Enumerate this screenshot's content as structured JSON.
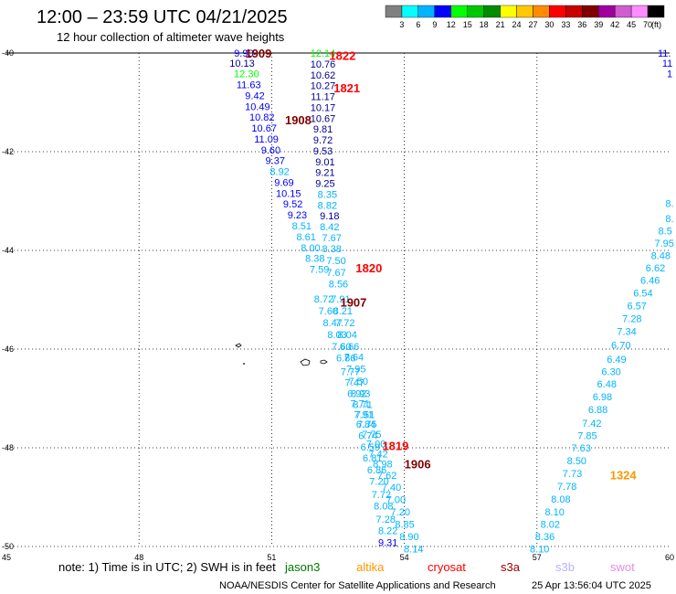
{
  "title": "12:00 – 23:59 UTC 04/21/2025",
  "subtitle": "12 hour collection of altimeter wave heights",
  "colorbar": {
    "unit": "(ft)",
    "colors": [
      "#808080",
      "#00ffff",
      "#00b4ff",
      "#0000ff",
      "#00ff00",
      "#00c800",
      "#008c00",
      "#ffff00",
      "#ffc800",
      "#ff8c00",
      "#ff0000",
      "#c80000",
      "#800000",
      "#a000a0",
      "#d05cd0",
      "#ff8cff",
      "#000000"
    ],
    "ticks": [
      "3",
      "6",
      "9",
      "12",
      "15",
      "18",
      "21",
      "24",
      "27",
      "30",
      "33",
      "36",
      "39",
      "42",
      "45",
      "70"
    ]
  },
  "note": {
    "text": "note: 1) Time is in UTC; 2) SWH is in feet",
    "satellites": [
      {
        "name": "jason3",
        "color": "#007800"
      },
      {
        "name": "altika",
        "color": "#ff9600"
      },
      {
        "name": "cryosat",
        "color": "#ff0000"
      },
      {
        "name": "s3a",
        "color": "#a00000"
      },
      {
        "name": "s3b",
        "color": "#b4b4ff"
      },
      {
        "name": "swot",
        "color": "#e68ce6"
      }
    ]
  },
  "credit": "NOAA/NESDIS Center for Satellite Applications and Research",
  "timestamp": "25 Apr 13:56:04 UTC 2025",
  "chart_data": {
    "type": "scatter",
    "xlim": [
      45,
      60
    ],
    "ylim": [
      -50,
      -40
    ],
    "x_ticks": [
      {
        "v": 45,
        "l": "45"
      },
      {
        "v": 48,
        "l": "48"
      },
      {
        "v": 51,
        "l": "51"
      },
      {
        "v": 54,
        "l": "54"
      },
      {
        "v": 57,
        "l": "57"
      },
      {
        "v": 60,
        "l": "60"
      }
    ],
    "y_ticks": [
      {
        "v": -40,
        "l": "-40"
      },
      {
        "v": -42,
        "l": "-42"
      },
      {
        "v": -44,
        "l": "-44"
      },
      {
        "v": -46,
        "l": "-46"
      },
      {
        "v": -48,
        "l": "-48"
      },
      {
        "v": -50,
        "l": "-50"
      }
    ],
    "grid": true,
    "track_labels": [
      {
        "text": "1909",
        "x": 50.7,
        "y": -40.0,
        "color": "#800000"
      },
      {
        "text": "1822",
        "x": 52.6,
        "y": -40.05,
        "color": "#ff0000"
      },
      {
        "text": "1821",
        "x": 52.7,
        "y": -40.7,
        "color": "#ff0000"
      },
      {
        "text": "1908",
        "x": 51.6,
        "y": -41.35,
        "color": "#800000"
      },
      {
        "text": "1820",
        "x": 53.2,
        "y": -44.35,
        "color": "#ff0000"
      },
      {
        "text": "1907",
        "x": 52.85,
        "y": -45.05,
        "color": "#800000"
      },
      {
        "text": "1819",
        "x": 53.8,
        "y": -47.95,
        "color": "#ff0000"
      },
      {
        "text": "1906",
        "x": 54.3,
        "y": -48.32,
        "color": "#800000"
      },
      {
        "text": "1324",
        "x": 58.95,
        "y": -48.55,
        "color": "#ff9600"
      }
    ],
    "points": [
      {
        "x": 50.37,
        "y": -40.0,
        "v": "9.90",
        "c": "#0000ff"
      },
      {
        "x": 50.33,
        "y": -40.2,
        "v": "10.13",
        "c": "#00008c"
      },
      {
        "x": 50.43,
        "y": -40.42,
        "v": "12.30",
        "c": "#00ff00"
      },
      {
        "x": 50.48,
        "y": -40.64,
        "v": "11.63",
        "c": "#0000ff"
      },
      {
        "x": 50.62,
        "y": -40.86,
        "v": "9.42",
        "c": "#0000ff"
      },
      {
        "x": 50.68,
        "y": -41.08,
        "v": "10.49",
        "c": "#0000ff"
      },
      {
        "x": 50.78,
        "y": -41.3,
        "v": "10.82",
        "c": "#0000ff"
      },
      {
        "x": 50.83,
        "y": -41.52,
        "v": "10.67",
        "c": "#0000ff"
      },
      {
        "x": 50.88,
        "y": -41.74,
        "v": "11.09",
        "c": "#0000ff"
      },
      {
        "x": 50.98,
        "y": -41.96,
        "v": "9.60",
        "c": "#0000ff"
      },
      {
        "x": 51.08,
        "y": -42.18,
        "v": "9.37",
        "c": "#0000ff"
      },
      {
        "x": 51.18,
        "y": -42.4,
        "v": "8.92",
        "c": "#00b4ff"
      },
      {
        "x": 51.28,
        "y": -42.62,
        "v": "9.69",
        "c": "#0000ff"
      },
      {
        "x": 51.38,
        "y": -42.84,
        "v": "10.15",
        "c": "#0000ff"
      },
      {
        "x": 51.48,
        "y": -43.06,
        "v": "9.52",
        "c": "#0000ff"
      },
      {
        "x": 51.58,
        "y": -43.28,
        "v": "9.23",
        "c": "#0000ff"
      },
      {
        "x": 51.68,
        "y": -43.5,
        "v": "8.51",
        "c": "#00b4ff"
      },
      {
        "x": 51.78,
        "y": -43.72,
        "v": "8.61",
        "c": "#00b4ff"
      },
      {
        "x": 51.88,
        "y": -43.94,
        "v": "8.00",
        "c": "#00b4ff"
      },
      {
        "x": 51.98,
        "y": -44.16,
        "v": "8.38",
        "c": "#00b4ff"
      },
      {
        "x": 52.08,
        "y": -44.38,
        "v": "7.59",
        "c": "#00b4ff"
      },
      {
        "x": 52.18,
        "y": -44.98,
        "v": "8.72",
        "c": "#00b4ff"
      },
      {
        "x": 52.28,
        "y": -45.22,
        "v": "7.60",
        "c": "#00b4ff"
      },
      {
        "x": 52.38,
        "y": -45.46,
        "v": "8.47",
        "c": "#00b4ff"
      },
      {
        "x": 52.48,
        "y": -45.7,
        "v": "8.03",
        "c": "#00b4ff"
      },
      {
        "x": 52.58,
        "y": -45.94,
        "v": "7.60",
        "c": "#00b4ff"
      },
      {
        "x": 52.68,
        "y": -46.18,
        "v": "6.86",
        "c": "#00b4ff"
      },
      {
        "x": 52.78,
        "y": -46.45,
        "v": "7.77",
        "c": "#00b4ff"
      },
      {
        "x": 52.88,
        "y": -46.68,
        "v": "7.47",
        "c": "#00b4ff"
      },
      {
        "x": 52.93,
        "y": -46.9,
        "v": "6.92",
        "c": "#00b4ff"
      },
      {
        "x": 53.0,
        "y": -47.1,
        "v": "7.71",
        "c": "#00b4ff"
      },
      {
        "x": 53.08,
        "y": -47.32,
        "v": "7.91",
        "c": "#00b4ff"
      },
      {
        "x": 53.13,
        "y": -47.52,
        "v": "6.84",
        "c": "#00b4ff"
      },
      {
        "x": 53.18,
        "y": -47.75,
        "v": "6.74",
        "c": "#00b4ff"
      },
      {
        "x": 53.23,
        "y": -47.98,
        "v": "6.59",
        "c": "#00b4ff"
      },
      {
        "x": 53.28,
        "y": -48.2,
        "v": "6.81",
        "c": "#00b4ff"
      },
      {
        "x": 53.38,
        "y": -48.44,
        "v": "6.86",
        "c": "#00b4ff"
      },
      {
        "x": 53.43,
        "y": -48.68,
        "v": "7.20",
        "c": "#00b4ff"
      },
      {
        "x": 53.48,
        "y": -48.94,
        "v": "7.72",
        "c": "#00b4ff"
      },
      {
        "x": 53.53,
        "y": -49.18,
        "v": "8.08",
        "c": "#00b4ff"
      },
      {
        "x": 53.58,
        "y": -49.44,
        "v": "7.28",
        "c": "#00b4ff"
      },
      {
        "x": 53.63,
        "y": -49.68,
        "v": "8.22",
        "c": "#00b4ff"
      },
      {
        "x": 53.63,
        "y": -49.92,
        "v": "9.31",
        "c": "#0000ff"
      },
      {
        "x": 52.16,
        "y": -40.0,
        "v": "12.14",
        "c": "#00ff00"
      },
      {
        "x": 52.16,
        "y": -40.22,
        "v": "10.76",
        "c": "#00008c"
      },
      {
        "x": 52.16,
        "y": -40.44,
        "v": "10.62",
        "c": "#00008c"
      },
      {
        "x": 52.16,
        "y": -40.66,
        "v": "10.27",
        "c": "#00008c"
      },
      {
        "x": 52.16,
        "y": -40.88,
        "v": "11.17",
        "c": "#00008c"
      },
      {
        "x": 52.16,
        "y": -41.1,
        "v": "10.17",
        "c": "#00008c"
      },
      {
        "x": 52.16,
        "y": -41.32,
        "v": "10.67",
        "c": "#00008c"
      },
      {
        "x": 52.16,
        "y": -41.54,
        "v": "9.81",
        "c": "#00008c"
      },
      {
        "x": 52.16,
        "y": -41.76,
        "v": "9.72",
        "c": "#00008c"
      },
      {
        "x": 52.16,
        "y": -41.98,
        "v": "9.53",
        "c": "#00008c"
      },
      {
        "x": 52.21,
        "y": -42.2,
        "v": "9.01",
        "c": "#00008c"
      },
      {
        "x": 52.21,
        "y": -42.42,
        "v": "9.21",
        "c": "#00008c"
      },
      {
        "x": 52.21,
        "y": -42.64,
        "v": "9.25",
        "c": "#00008c"
      },
      {
        "x": 52.26,
        "y": -42.86,
        "v": "8.35",
        "c": "#00b4ff"
      },
      {
        "x": 52.26,
        "y": -43.08,
        "v": "8.82",
        "c": "#00b4ff"
      },
      {
        "x": 52.31,
        "y": -43.3,
        "v": "9.18",
        "c": "#00008c"
      },
      {
        "x": 52.31,
        "y": -43.52,
        "v": "8.42",
        "c": "#00b4ff"
      },
      {
        "x": 52.36,
        "y": -43.74,
        "v": "7.67",
        "c": "#00b4ff"
      },
      {
        "x": 52.36,
        "y": -43.96,
        "v": "8.38",
        "c": "#00b4ff"
      },
      {
        "x": 52.46,
        "y": -44.2,
        "v": "7.50",
        "c": "#00b4ff"
      },
      {
        "x": 52.46,
        "y": -44.44,
        "v": "7.67",
        "c": "#00b4ff"
      },
      {
        "x": 52.51,
        "y": -44.68,
        "v": "8.56",
        "c": "#00b4ff"
      },
      {
        "x": 52.56,
        "y": -44.98,
        "v": "7.91",
        "c": "#00b4ff"
      },
      {
        "x": 52.61,
        "y": -45.22,
        "v": "8.21",
        "c": "#00b4ff"
      },
      {
        "x": 52.66,
        "y": -45.46,
        "v": "7.72",
        "c": "#00b4ff"
      },
      {
        "x": 52.71,
        "y": -45.7,
        "v": "8.04",
        "c": "#00b4ff"
      },
      {
        "x": 52.76,
        "y": -45.94,
        "v": "6.66",
        "c": "#00b4ff"
      },
      {
        "x": 52.86,
        "y": -46.16,
        "v": "7.64",
        "c": "#00b4ff"
      },
      {
        "x": 52.91,
        "y": -46.4,
        "v": "7.95",
        "c": "#00b4ff"
      },
      {
        "x": 52.96,
        "y": -46.65,
        "v": "7.50",
        "c": "#00b4ff"
      },
      {
        "x": 53.01,
        "y": -46.9,
        "v": "8.93",
        "c": "#00b4ff"
      },
      {
        "x": 53.06,
        "y": -47.12,
        "v": "8.71",
        "c": "#00b4ff"
      },
      {
        "x": 53.11,
        "y": -47.32,
        "v": "7.51",
        "c": "#00b4ff"
      },
      {
        "x": 53.16,
        "y": -47.52,
        "v": "7.75",
        "c": "#00b4ff"
      },
      {
        "x": 53.26,
        "y": -47.72,
        "v": "7.75",
        "c": "#00b4ff"
      },
      {
        "x": 53.36,
        "y": -47.92,
        "v": "7.00",
        "c": "#00b4ff"
      },
      {
        "x": 53.41,
        "y": -48.12,
        "v": "7.42",
        "c": "#00b4ff"
      },
      {
        "x": 53.51,
        "y": -48.32,
        "v": "8.98",
        "c": "#00b4ff"
      },
      {
        "x": 53.61,
        "y": -48.56,
        "v": "7.62",
        "c": "#00b4ff"
      },
      {
        "x": 53.71,
        "y": -48.8,
        "v": "7.40",
        "c": "#00b4ff"
      },
      {
        "x": 53.81,
        "y": -49.05,
        "v": "7.00",
        "c": "#00b4ff"
      },
      {
        "x": 53.91,
        "y": -49.3,
        "v": "7.20",
        "c": "#00b4ff"
      },
      {
        "x": 54.01,
        "y": -49.55,
        "v": "8.85",
        "c": "#00b4ff"
      },
      {
        "x": 54.11,
        "y": -49.8,
        "v": "8.90",
        "c": "#00b4ff"
      },
      {
        "x": 54.21,
        "y": -50.05,
        "v": "8.14",
        "c": "#00b4ff"
      },
      {
        "x": 59.88,
        "y": -40.0,
        "v": "11.",
        "c": "#0000ff"
      },
      {
        "x": 59.95,
        "y": -40.2,
        "v": "11",
        "c": "#0000ff"
      },
      {
        "x": 60.0,
        "y": -40.42,
        "v": "1",
        "c": "#0000ff"
      },
      {
        "x": 60.0,
        "y": -43.05,
        "v": "8.",
        "c": "#00b4ff"
      },
      {
        "x": 60.0,
        "y": -43.35,
        "v": "8.",
        "c": "#00b4ff"
      },
      {
        "x": 59.9,
        "y": -43.6,
        "v": "8.5",
        "c": "#00b4ff"
      },
      {
        "x": 59.88,
        "y": -43.85,
        "v": "7.95",
        "c": "#00b4ff"
      },
      {
        "x": 59.8,
        "y": -44.1,
        "v": "8.48",
        "c": "#00b4ff"
      },
      {
        "x": 59.68,
        "y": -44.35,
        "v": "6.62",
        "c": "#00b4ff"
      },
      {
        "x": 59.56,
        "y": -44.6,
        "v": "6.46",
        "c": "#00b4ff"
      },
      {
        "x": 59.4,
        "y": -44.86,
        "v": "6.54",
        "c": "#00b4ff"
      },
      {
        "x": 59.26,
        "y": -45.12,
        "v": "6.57",
        "c": "#00b4ff"
      },
      {
        "x": 59.15,
        "y": -45.38,
        "v": "7.28",
        "c": "#00b4ff"
      },
      {
        "x": 59.03,
        "y": -45.64,
        "v": "7.34",
        "c": "#00b4ff"
      },
      {
        "x": 58.9,
        "y": -45.92,
        "v": "6.70",
        "c": "#00b4ff"
      },
      {
        "x": 58.8,
        "y": -46.2,
        "v": "6.49",
        "c": "#00b4ff"
      },
      {
        "x": 58.68,
        "y": -46.45,
        "v": "6.30",
        "c": "#00b4ff"
      },
      {
        "x": 58.58,
        "y": -46.7,
        "v": "6.48",
        "c": "#00b4ff"
      },
      {
        "x": 58.48,
        "y": -46.96,
        "v": "6.98",
        "c": "#00b4ff"
      },
      {
        "x": 58.38,
        "y": -47.22,
        "v": "6.88",
        "c": "#00b4ff"
      },
      {
        "x": 58.24,
        "y": -47.5,
        "v": "7.42",
        "c": "#00b4ff"
      },
      {
        "x": 58.14,
        "y": -47.75,
        "v": "7.85",
        "c": "#00b4ff"
      },
      {
        "x": 58.0,
        "y": -48.0,
        "v": "7.63",
        "c": "#00b4ff"
      },
      {
        "x": 57.9,
        "y": -48.26,
        "v": "8.50",
        "c": "#00b4ff"
      },
      {
        "x": 57.8,
        "y": -48.52,
        "v": "7.73",
        "c": "#00b4ff"
      },
      {
        "x": 57.68,
        "y": -48.78,
        "v": "7.78",
        "c": "#00b4ff"
      },
      {
        "x": 57.54,
        "y": -49.04,
        "v": "8.08",
        "c": "#00b4ff"
      },
      {
        "x": 57.4,
        "y": -49.3,
        "v": "8.10",
        "c": "#00b4ff"
      },
      {
        "x": 57.3,
        "y": -49.55,
        "v": "8.02",
        "c": "#00b4ff"
      },
      {
        "x": 57.18,
        "y": -49.8,
        "v": "8.36",
        "c": "#00b4ff"
      },
      {
        "x": 57.06,
        "y": -50.05,
        "v": "8.10",
        "c": "#00b4ff"
      }
    ]
  }
}
